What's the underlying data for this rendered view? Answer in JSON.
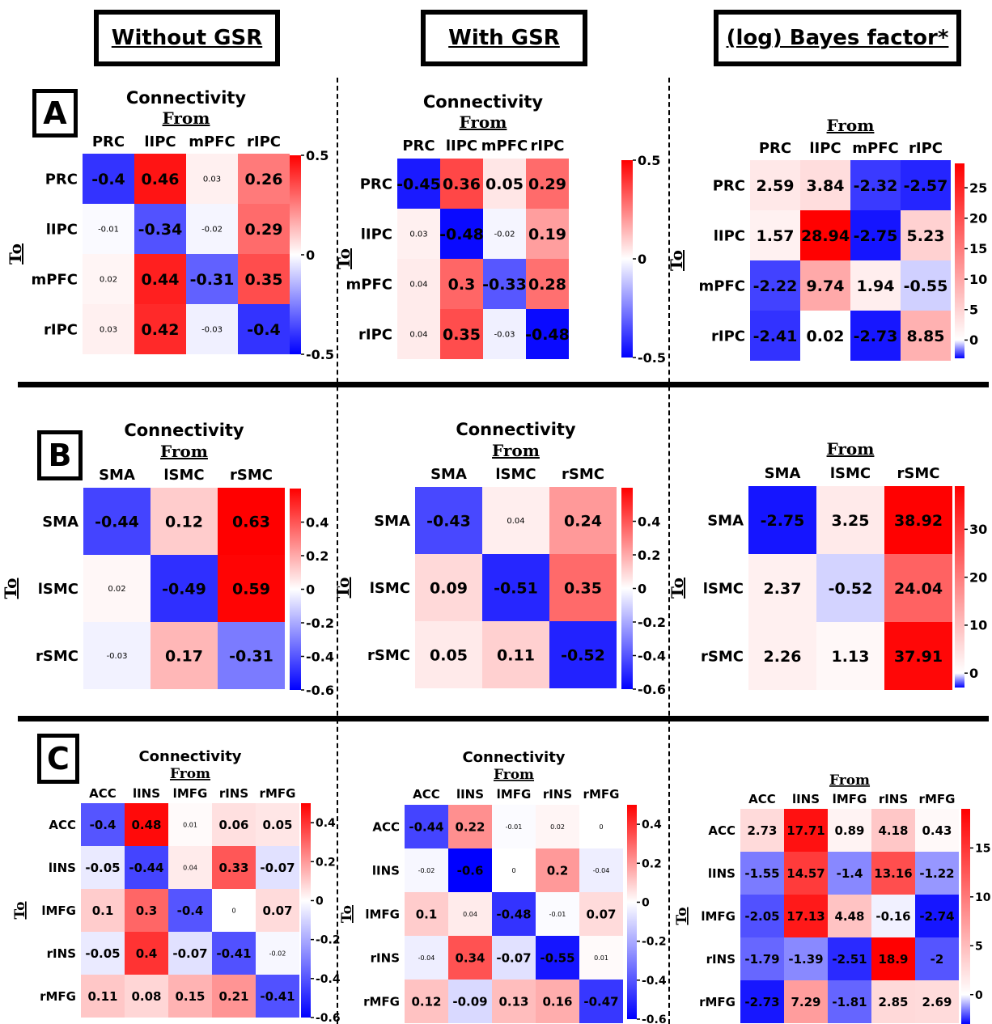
{
  "headers": {
    "without_gsr": "Without GSR",
    "with_gsr": "With GSR",
    "bayes": "(log) Bayes factor*"
  },
  "panel_labels": [
    "A",
    "B",
    "C"
  ],
  "colors": {
    "neg": "#0000ff",
    "mid": "#ffffff",
    "pos": "#ff0000"
  },
  "chart_data": [
    {
      "panel": "A",
      "column": "Without GSR",
      "type": "heatmap",
      "title": "Connectivity",
      "xlabel": "From",
      "ylabel": "To",
      "x": [
        "PRC",
        "lIPC",
        "mPFC",
        "rIPC"
      ],
      "y": [
        "PRC",
        "lIPC",
        "mPFC",
        "rIPC"
      ],
      "values": [
        [
          "-0.4",
          "0.46",
          "0.03",
          "0.26"
        ],
        [
          "-0.01",
          "-0.34",
          "-0.02",
          "0.29"
        ],
        [
          "0.02",
          "0.44",
          "-0.31",
          "0.35"
        ],
        [
          "0.03",
          "0.42",
          "-0.03",
          "-0.4"
        ]
      ],
      "colorbar_range": [
        -0.5,
        0.5
      ],
      "colorbar_ticks": [
        "0.5",
        "0",
        "-0.5"
      ]
    },
    {
      "panel": "A",
      "column": "With GSR",
      "type": "heatmap",
      "title": "Connectivity",
      "xlabel": "From",
      "ylabel": "To",
      "x": [
        "PRC",
        "lIPC",
        "mPFC",
        "rIPC"
      ],
      "y": [
        "PRC",
        "lIPC",
        "mPFC",
        "rIPC"
      ],
      "values": [
        [
          "-0.45",
          "0.36",
          "0.05",
          "0.29"
        ],
        [
          "0.03",
          "-0.48",
          "-0.02",
          "0.19"
        ],
        [
          "0.04",
          "0.3",
          "-0.33",
          "0.28"
        ],
        [
          "0.04",
          "0.35",
          "-0.03",
          "-0.48"
        ]
      ],
      "colorbar_range": [
        -0.5,
        0.5
      ],
      "colorbar_ticks": [
        "0.5",
        "0",
        "-0.5"
      ]
    },
    {
      "panel": "A",
      "column": "(log) Bayes factor*",
      "type": "heatmap",
      "title": "",
      "xlabel": "From",
      "ylabel": "To",
      "x": [
        "PRC",
        "lIPC",
        "mPFC",
        "rIPC"
      ],
      "y": [
        "PRC",
        "lIPC",
        "mPFC",
        "rIPC"
      ],
      "values": [
        [
          "2.59",
          "3.84",
          "-2.32",
          "-2.57"
        ],
        [
          "1.57",
          "28.94",
          "-2.75",
          "5.23"
        ],
        [
          "-2.22",
          "9.74",
          "1.94",
          "-0.55"
        ],
        [
          "-2.41",
          "0.02",
          "-2.73",
          "8.85"
        ]
      ],
      "colorbar_range": [
        -3,
        29
      ],
      "colorbar_ticks": [
        "25",
        "20",
        "15",
        "10",
        "5",
        "0"
      ]
    },
    {
      "panel": "B",
      "column": "Without GSR",
      "type": "heatmap",
      "title": "Connectivity",
      "xlabel": "From",
      "ylabel": "To",
      "x": [
        "SMA",
        "lSMC",
        "rSMC"
      ],
      "y": [
        "SMA",
        "lSMC",
        "rSMC"
      ],
      "values": [
        [
          "-0.44",
          "0.12",
          "0.63"
        ],
        [
          "0.02",
          "-0.49",
          "0.59"
        ],
        [
          "-0.03",
          "0.17",
          "-0.31"
        ]
      ],
      "colorbar_range": [
        -0.6,
        0.6
      ],
      "colorbar_ticks": [
        "0.4",
        "0.2",
        "0",
        "-0.2",
        "-0.4",
        "-0.6"
      ]
    },
    {
      "panel": "B",
      "column": "With GSR",
      "type": "heatmap",
      "title": "Connectivity",
      "xlabel": "From",
      "ylabel": "To",
      "x": [
        "SMA",
        "lSMC",
        "rSMC"
      ],
      "y": [
        "SMA",
        "lSMC",
        "rSMC"
      ],
      "values": [
        [
          "-0.43",
          "0.04",
          "0.24"
        ],
        [
          "0.09",
          "-0.51",
          "0.35"
        ],
        [
          "0.05",
          "0.11",
          "-0.52"
        ]
      ],
      "colorbar_range": [
        -0.6,
        0.6
      ],
      "colorbar_ticks": [
        "0.4",
        "0.2",
        "0",
        "-0.2",
        "-0.4",
        "-0.6"
      ]
    },
    {
      "panel": "B",
      "column": "(log) Bayes factor*",
      "type": "heatmap",
      "title": "",
      "xlabel": "From",
      "ylabel": "To",
      "x": [
        "SMA",
        "lSMC",
        "rSMC"
      ],
      "y": [
        "SMA",
        "lSMC",
        "rSMC"
      ],
      "values": [
        [
          "-2.75",
          "3.25",
          "38.92"
        ],
        [
          "2.37",
          "-0.52",
          "24.04"
        ],
        [
          "2.26",
          "1.13",
          "37.91"
        ]
      ],
      "colorbar_range": [
        -3,
        39
      ],
      "colorbar_ticks": [
        "30",
        "20",
        "10",
        "0"
      ]
    },
    {
      "panel": "C",
      "column": "Without GSR",
      "type": "heatmap",
      "title": "Connectivity",
      "xlabel": "From",
      "ylabel": "To",
      "x": [
        "ACC",
        "lINS",
        "lMFG",
        "rINS",
        "rMFG"
      ],
      "y": [
        "ACC",
        "lINS",
        "lMFG",
        "rINS",
        "rMFG"
      ],
      "values": [
        [
          "-0.4",
          "0.48",
          "0.01",
          "0.06",
          "0.05"
        ],
        [
          "-0.05",
          "-0.44",
          "0.04",
          "0.33",
          "-0.07"
        ],
        [
          "0.1",
          "0.3",
          "-0.4",
          "0",
          "0.07"
        ],
        [
          "-0.05",
          "0.4",
          "-0.07",
          "-0.41",
          "-0.02"
        ],
        [
          "0.11",
          "0.08",
          "0.15",
          "0.21",
          "-0.41"
        ]
      ],
      "colorbar_range": [
        -0.6,
        0.5
      ],
      "colorbar_ticks": [
        "0.4",
        "0.2",
        "0",
        "-0.2",
        "-0.4",
        "-0.6"
      ]
    },
    {
      "panel": "C",
      "column": "With GSR",
      "type": "heatmap",
      "title": "Connectivity",
      "xlabel": "From",
      "ylabel": "To",
      "x": [
        "ACC",
        "lINS",
        "lMFG",
        "rINS",
        "rMFG"
      ],
      "y": [
        "ACC",
        "lINS",
        "lMFG",
        "rINS",
        "rMFG"
      ],
      "values": [
        [
          "-0.44",
          "0.22",
          "-0.01",
          "0.02",
          "0"
        ],
        [
          "-0.02",
          "-0.6",
          "0",
          "0.2",
          "-0.04"
        ],
        [
          "0.1",
          "0.04",
          "-0.48",
          "-0.01",
          "0.07"
        ],
        [
          "-0.04",
          "0.34",
          "-0.07",
          "-0.55",
          "0.01"
        ],
        [
          "0.12",
          "-0.09",
          "0.13",
          "0.16",
          "-0.47"
        ]
      ],
      "colorbar_range": [
        -0.6,
        0.5
      ],
      "colorbar_ticks": [
        "0.4",
        "0.2",
        "0",
        "-0.2",
        "-0.4",
        "-0.6"
      ]
    },
    {
      "panel": "C",
      "column": "(log) Bayes factor*",
      "type": "heatmap",
      "title": "",
      "xlabel": "From",
      "ylabel": "To",
      "x": [
        "ACC",
        "lINS",
        "lMFG",
        "rINS",
        "rMFG"
      ],
      "y": [
        "ACC",
        "lINS",
        "lMFG",
        "rINS",
        "rMFG"
      ],
      "values": [
        [
          "2.73",
          "17.71",
          "0.89",
          "4.18",
          "0.43"
        ],
        [
          "-1.55",
          "14.57",
          "-1.4",
          "13.16",
          "-1.22"
        ],
        [
          "-2.05",
          "17.13",
          "4.48",
          "-0.16",
          "-2.74"
        ],
        [
          "-1.79",
          "-1.39",
          "-2.51",
          "18.9",
          "-2"
        ],
        [
          "-2.73",
          "7.29",
          "-1.81",
          "2.85",
          "2.69"
        ]
      ],
      "colorbar_range": [
        -3,
        19
      ],
      "colorbar_ticks": [
        "15",
        "10",
        "5",
        "0"
      ]
    }
  ]
}
